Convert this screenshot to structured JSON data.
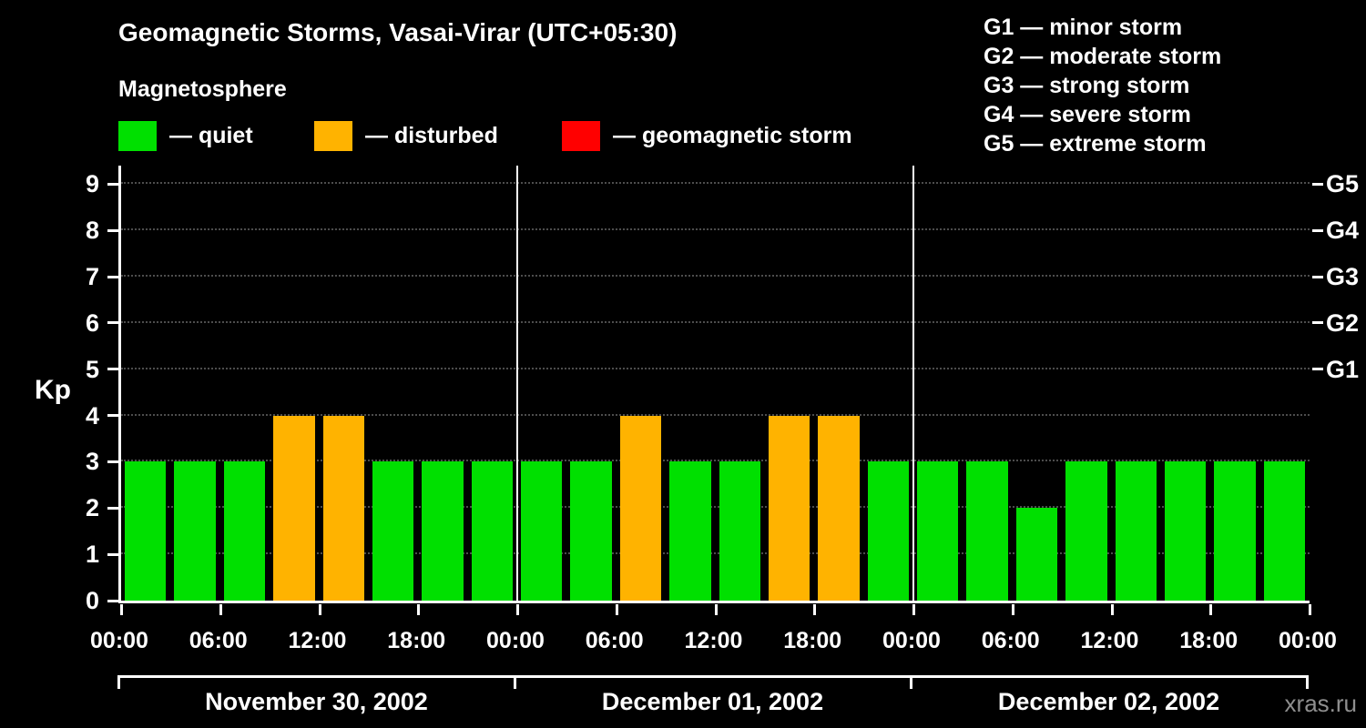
{
  "title": "Geomagnetic Storms, Vasai-Virar (UTC+05:30)",
  "legend": {
    "heading": "Magnetosphere",
    "items": [
      {
        "name": "quiet",
        "label": "— quiet",
        "color": "#00e000"
      },
      {
        "name": "disturbed",
        "label": "— disturbed",
        "color": "#ffb300"
      },
      {
        "name": "storm",
        "label": "— geomagnetic storm",
        "color": "#ff0000"
      }
    ]
  },
  "storm_scale": {
    "items": [
      "G1 — minor storm",
      "G2 — moderate storm",
      "G3 — strong storm",
      "G4 — severe storm",
      "G5 — extreme storm"
    ]
  },
  "watermark": "xras.ru",
  "chart_data": {
    "type": "bar",
    "title": "Geomagnetic Storms, Vasai-Virar (UTC+05:30)",
    "ylabel": "Kp",
    "ylim": [
      0,
      9.4
    ],
    "yticks": [
      0,
      1,
      2,
      3,
      4,
      5,
      6,
      7,
      8,
      9
    ],
    "grid": "dotted horizontal lines at each Kp level",
    "legend_position": "top",
    "right_axis": [
      {
        "label": "G1",
        "value": 5
      },
      {
        "label": "G2",
        "value": 6
      },
      {
        "label": "G3",
        "value": 7
      },
      {
        "label": "G4",
        "value": 8
      },
      {
        "label": "G5",
        "value": 9
      }
    ],
    "x_tick_labels_per_day": [
      "00:00",
      "06:00",
      "12:00",
      "18:00"
    ],
    "x_axis_end_label": "00:00",
    "bar_hours": 3,
    "days": [
      {
        "date": "November 30, 2002",
        "values": [
          3,
          3,
          3,
          4,
          4,
          3,
          3,
          3
        ]
      },
      {
        "date": "December 01, 2002",
        "values": [
          3,
          3,
          4,
          3,
          3,
          4,
          4,
          3
        ]
      },
      {
        "date": "December 02, 2002",
        "values": [
          3,
          3,
          2,
          3,
          3,
          3,
          3,
          3
        ]
      }
    ],
    "color_thresholds": {
      "disturbed_min": 4,
      "storm_min": 5
    },
    "colors": {
      "quiet": "#00e000",
      "disturbed": "#ffb300",
      "storm": "#ff0000",
      "background": "#000000",
      "text": "#ffffff",
      "grid": "#4d4d4d",
      "axis": "#ffffff",
      "watermark": "#8f8f8f"
    }
  }
}
